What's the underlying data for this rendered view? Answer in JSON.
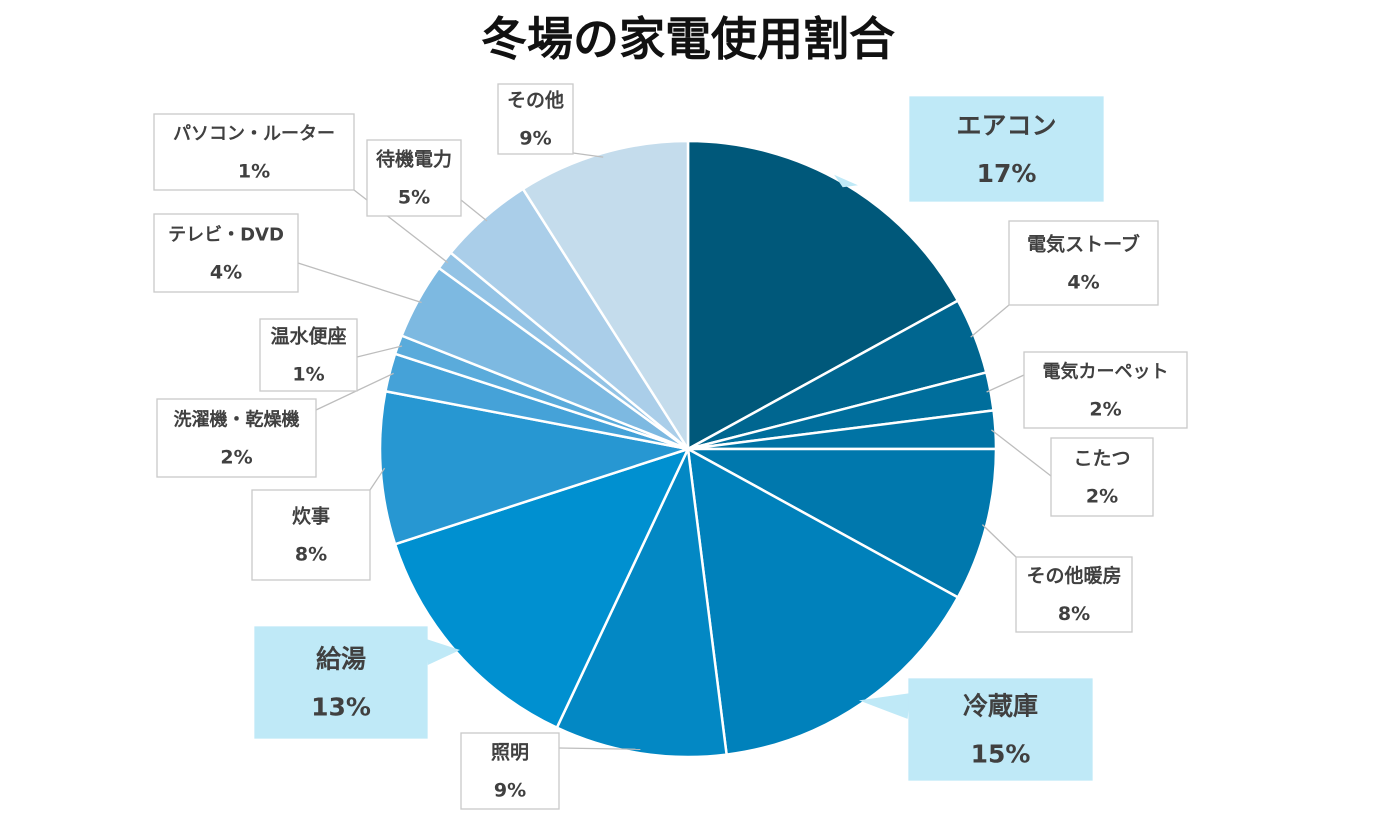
{
  "chart_data": {
    "type": "pie",
    "title": "冬場の家電使用割合",
    "start_angle_deg": 0,
    "direction": "clockwise",
    "slices": [
      {
        "name": "エアコン",
        "value": 17,
        "label": "17%",
        "color": "#00587a",
        "highlight": true
      },
      {
        "name": "電気ストーブ",
        "value": 4,
        "label": "4%",
        "color": "#006690",
        "highlight": false
      },
      {
        "name": "電気カーペット",
        "value": 2,
        "label": "2%",
        "color": "#006e9c",
        "highlight": false
      },
      {
        "name": "こたつ",
        "value": 2,
        "label": "2%",
        "color": "#0073a4",
        "highlight": false
      },
      {
        "name": "その他暖房",
        "value": 8,
        "label": "8%",
        "color": "#0078ad",
        "highlight": false
      },
      {
        "name": "冷蔵庫",
        "value": 15,
        "label": "15%",
        "color": "#0081bb",
        "highlight": true
      },
      {
        "name": "照明",
        "value": 9,
        "label": "9%",
        "color": "#0388c4",
        "highlight": false
      },
      {
        "name": "給湯",
        "value": 13,
        "label": "13%",
        "color": "#0090d0",
        "highlight": true
      },
      {
        "name": "炊事",
        "value": 8,
        "label": "8%",
        "color": "#2797d2",
        "highlight": false
      },
      {
        "name": "洗濯機・乾燥機",
        "value": 2,
        "label": "2%",
        "color": "#45a2d8",
        "highlight": false
      },
      {
        "name": "温水便座",
        "value": 1,
        "label": "1%",
        "color": "#5aabdb",
        "highlight": false
      },
      {
        "name": "テレビ・DVD",
        "value": 4,
        "label": "4%",
        "color": "#7db9e1",
        "highlight": false
      },
      {
        "name": "パソコン・ルーター",
        "value": 1,
        "label": "1%",
        "color": "#93c3e5",
        "highlight": false
      },
      {
        "name": "待機電力",
        "value": 5,
        "label": "5%",
        "color": "#aacee9",
        "highlight": false
      },
      {
        "name": "その他",
        "value": 9,
        "label": "9%",
        "color": "#c4dcec",
        "highlight": false
      }
    ],
    "legend": "none",
    "data_labels": "callouts",
    "colors": {
      "callout_highlight_fill": "#bfe9f7",
      "callout_fill": "#ffffff",
      "callout_border": "#c9c9c9",
      "leader_line": "#bdbdbd",
      "slice_border": "#ffffff",
      "label_text": "#404040",
      "title_text": "#111111"
    }
  }
}
